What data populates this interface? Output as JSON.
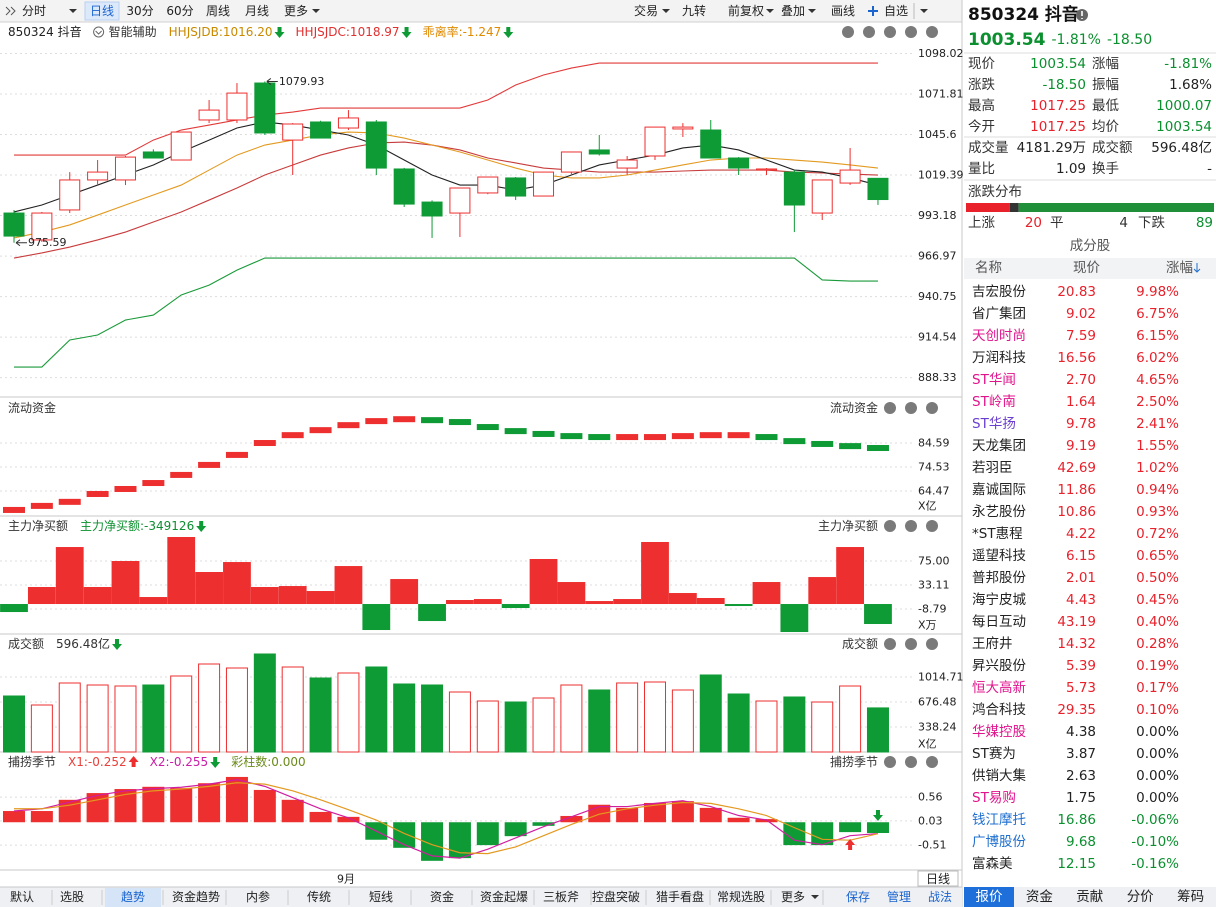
{
  "toolbar": {
    "left": [
      "分时",
      "日线",
      "30分",
      "60分",
      "周线",
      "月线",
      "更多"
    ],
    "active": 1,
    "right": [
      "交易",
      "九转",
      "前复权",
      "叠加",
      "画线",
      "自选"
    ]
  },
  "main": {
    "title": "850324 抖音",
    "assist": "智能辅助",
    "legend": [
      {
        "text": "HHJSJDB:1016.20",
        "color": "#c98a00",
        "arrow": "down"
      },
      {
        "text": "HHJSJDC:1018.97",
        "color": "#e03030",
        "arrow": "down"
      },
      {
        "text": "乖离率:-1.247",
        "color": "#e08a00",
        "arrow": "down"
      }
    ],
    "ylim": [
      877.1,
      1103.5
    ],
    "yticks": [
      1098.02,
      1071.81,
      1045.6,
      1019.39,
      993.18,
      966.97,
      940.75,
      914.54,
      888.33
    ],
    "open": [
      994.8,
      977.4,
      996.8,
      1016.2,
      1016.2,
      1034.3,
      1029.1,
      1055.0,
      1055.0,
      1078.9,
      1042.0,
      1053.7,
      1049.8,
      1053.7,
      1023.3,
      1001.9,
      994.8,
      1007.8,
      1017.5,
      1005.8,
      1021.3,
      1035.6,
      1023.9,
      1031.7,
      1049.2,
      1048.5,
      1030.4,
      1022.6,
      1021.3,
      994.8,
      1014.2,
      1017.25
    ],
    "high": [
      996.8,
      995.5,
      1021.3,
      1029.1,
      1031.7,
      1036.0,
      1047.2,
      1067.9,
      1078.9,
      1079.93,
      1053.0,
      1054.5,
      1061.4,
      1055.0,
      1024.0,
      1003.0,
      1011.0,
      1018.1,
      1018.1,
      1021.3,
      1034.3,
      1045.3,
      1031.7,
      1050.4,
      1053.0,
      1055.0,
      1031.0,
      1023.9,
      1022.6,
      1016.2,
      1036.9,
      1017.25
    ],
    "low": [
      975.59,
      976.1,
      994.8,
      1012.9,
      1012.9,
      1030.4,
      1029.1,
      1053.0,
      1053.0,
      1045.3,
      1019.4,
      1043.3,
      1048.5,
      1019.4,
      998.7,
      978.7,
      979.3,
      1007.0,
      1003.2,
      1005.8,
      1020.0,
      1032.0,
      1019.4,
      1029.1,
      1044.0,
      1030.4,
      1019.4,
      1019.4,
      982.5,
      990.3,
      1013.0,
      1000.07
    ],
    "close": [
      979.9,
      994.8,
      1016.2,
      1021.3,
      1031.0,
      1030.4,
      1047.2,
      1061.4,
      1072.4,
      1046.6,
      1052.4,
      1043.3,
      1056.3,
      1023.9,
      1000.6,
      992.9,
      1011.0,
      1018.1,
      1005.8,
      1021.3,
      1034.3,
      1033.0,
      1029.1,
      1050.4,
      1050.4,
      1030.4,
      1023.9,
      1023.3,
      1000.0,
      1016.2,
      1022.6,
      1003.54
    ],
    "lines": [
      {
        "color": "#e23a3a",
        "values": [
          1032.3,
          1032.3,
          1032.3,
          1032.3,
          1032.3,
          1042.0,
          1048.5,
          1051.7,
          1055.0,
          1058.2,
          1060.1,
          1062.7,
          1062.7,
          1062.7,
          1062.7,
          1062.7,
          1062.7,
          1067.9,
          1077.6,
          1084.1,
          1088.6,
          1091.8,
          1091.8,
          1091.8,
          1091.8,
          1091.8,
          1091.8,
          1091.8,
          1091.8,
          1091.8,
          1091.8,
          1091.8
        ]
      },
      {
        "color": "#1a9a3a",
        "values": [
          895.2,
          895.2,
          912.7,
          915.9,
          925.6,
          928.8,
          941.8,
          948.2,
          957.9,
          965.7,
          965.7,
          965.7,
          965.7,
          965.7,
          965.7,
          965.7,
          965.7,
          965.7,
          965.7,
          965.7,
          965.7,
          965.7,
          965.7,
          965.7,
          965.7,
          965.7,
          965.7,
          965.7,
          965.7,
          951.5,
          950.8,
          950.8
        ]
      },
      {
        "color": "#c83c3c",
        "values": [
          965.7,
          969.0,
          972.8,
          977.4,
          982.5,
          989.0,
          995.5,
          1003.2,
          1011.0,
          1019.4,
          1025.9,
          1032.3,
          1036.9,
          1040.1,
          1040.7,
          1038.8,
          1035.6,
          1030.4,
          1027.2,
          1023.9,
          1022.6,
          1021.3,
          1021.3,
          1021.3,
          1022.0,
          1022.6,
          1022.6,
          1022.6,
          1021.3,
          1020.7,
          1020.0,
          1019.4
        ]
      },
      {
        "color": "#e39a20",
        "values": [
          978.7,
          982.5,
          987.1,
          993.5,
          1000.0,
          1006.5,
          1012.9,
          1022.6,
          1032.3,
          1038.8,
          1042.0,
          1045.3,
          1047.2,
          1046.6,
          1043.3,
          1038.8,
          1034.3,
          1029.1,
          1023.9,
          1019.4,
          1017.5,
          1017.5,
          1019.4,
          1022.6,
          1025.9,
          1029.1,
          1030.4,
          1030.4,
          1029.1,
          1027.8,
          1025.9,
          1023.9
        ]
      },
      {
        "color": "#222222",
        "values": [
          995.5,
          1000.0,
          1006.5,
          1012.9,
          1019.4,
          1025.9,
          1034.3,
          1042.0,
          1049.8,
          1053.7,
          1051.7,
          1048.5,
          1045.3,
          1038.8,
          1029.1,
          1019.4,
          1012.9,
          1012.9,
          1009.7,
          1012.9,
          1019.4,
          1025.9,
          1029.1,
          1032.3,
          1036.9,
          1038.8,
          1035.6,
          1029.1,
          1022.6,
          1021.3,
          1017.5,
          1012.9
        ]
      }
    ]
  },
  "panels": [
    {
      "type": "dash",
      "title": "流动资金",
      "legend": [],
      "unit": "X亿",
      "ylim": [
        54.8,
        95.1
      ],
      "yticks": [
        84.59,
        74.53,
        64.47
      ],
      "values": [
        56.5,
        58.2,
        59.9,
        63.2,
        65.3,
        67.8,
        71.2,
        75.4,
        79.6,
        84.6,
        87.9,
        90.0,
        92.1,
        93.8,
        94.6,
        94.2,
        93.4,
        91.3,
        89.6,
        88.4,
        87.5,
        87.1,
        87.1,
        87.1,
        87.5,
        87.9,
        87.9,
        87.1,
        85.4,
        84.2,
        83.3,
        82.5
      ]
    },
    {
      "type": "net",
      "title": "主力净买额",
      "legend": [
        {
          "text": "主力净买额:-349126",
          "color": "#0b8f2f",
          "arrow": "down"
        }
      ],
      "unit": "X万",
      "ylim": [
        -50.6,
        120.5
      ],
      "yticks": [
        {
          "value": 75,
          "label": "75.00"
        },
        33.11,
        -8.79
      ],
      "values": [
        -14,
        29.7,
        99.5,
        29.7,
        75.1,
        12.2,
        117.0,
        55.9,
        73.3,
        29.7,
        31.4,
        22.7,
        66.3,
        -45.4,
        43.6,
        -29.7,
        7.0,
        8.7,
        -7.0,
        78.6,
        38.4,
        5.2,
        8.7,
        108.3,
        19.2,
        10.5,
        -3.5,
        38.4,
        -48.9,
        47.1,
        99.5,
        -34.9
      ]
    },
    {
      "type": "volume",
      "title": "成交额",
      "legend": [
        {
          "text": "596.48亿",
          "color": "#333333",
          "arrow": "down"
        }
      ],
      "unit": "X亿",
      "ylim": [
        0,
        1380
      ],
      "yticks": [
        1014.71,
        676.48,
        338.24
      ],
      "values": [
        757.7,
        635.9,
        933.6,
        906.5,
        893.0,
        906.5,
        1028.3,
        1190.6,
        1136.5,
        1325.9,
        1150.0,
        1001.2,
        1068.9,
        1150.0,
        920.0,
        906.5,
        811.8,
        690.0,
        676.5,
        730.6,
        906.5,
        838.9,
        933.6,
        947.1,
        838.9,
        1041.8,
        784.7,
        690.0,
        744.2,
        676.5,
        893.0,
        596.48
      ]
    },
    {
      "type": "season",
      "title": "捕捞季节",
      "legend": [
        {
          "text": "X1:-0.252",
          "color": "#e8403a",
          "arrow": "up"
        },
        {
          "text": "X2:-0.255",
          "color": "#c81ea8",
          "arrow": "down"
        },
        {
          "text": "彩柱数:0.000",
          "color": "#6a8a1a"
        }
      ],
      "ylim": [
        -1.02,
        1.12
      ],
      "yticks": [
        0.56,
        0.03,
        -0.51
      ],
      "values": [
        0.25,
        0.25,
        0.5,
        0.65,
        0.74,
        0.79,
        0.76,
        0.87,
        1.01,
        0.72,
        0.5,
        0.23,
        0.12,
        -0.39,
        -0.57,
        -0.86,
        -0.8,
        -0.51,
        -0.31,
        -0.08,
        0.14,
        0.39,
        0.32,
        0.43,
        0.47,
        0.32,
        0.1,
        0.07,
        -0.51,
        -0.51,
        -0.22,
        -0.24
      ],
      "lines": [
        {
          "color": "#d01ea0",
          "values": [
            0.25,
            0.3,
            0.45,
            0.6,
            0.7,
            0.75,
            0.78,
            0.85,
            0.95,
            0.8,
            0.55,
            0.3,
            0.1,
            -0.2,
            -0.5,
            -0.75,
            -0.8,
            -0.6,
            -0.35,
            -0.1,
            0.12,
            0.35,
            0.35,
            0.42,
            0.48,
            0.35,
            0.15,
            0.05,
            -0.4,
            -0.5,
            -0.3,
            -0.252
          ]
        },
        {
          "color": "#e39a20",
          "values": [
            0.3,
            0.3,
            0.38,
            0.5,
            0.62,
            0.7,
            0.74,
            0.8,
            0.88,
            0.85,
            0.7,
            0.5,
            0.28,
            0.05,
            -0.25,
            -0.5,
            -0.68,
            -0.7,
            -0.55,
            -0.3,
            -0.05,
            0.18,
            0.3,
            0.38,
            0.44,
            0.42,
            0.3,
            0.15,
            -0.12,
            -0.38,
            -0.4,
            -0.255
          ]
        }
      ]
    }
  ],
  "xaxis": {
    "label": "9月",
    "period": "日线"
  },
  "bottom_tabs": {
    "items": [
      "默认",
      "选股",
      "趋势",
      "资金趋势",
      "内参",
      "传统",
      "短线",
      "资金",
      "资金起爆",
      "三板斧",
      "控盘突破",
      "猎手看盘",
      "常规选股",
      "更多"
    ],
    "active": 2,
    "actions": [
      "保存",
      "管理",
      "战法"
    ]
  },
  "quote": {
    "name": "850324 抖音",
    "price": "1003.54",
    "pct": "-1.81%",
    "change": "-18.50",
    "color": "#0b8f2f",
    "stats": [
      [
        {
          "label": "现价",
          "value": "1003.54",
          "color": "#0b8f2f"
        },
        {
          "label": "涨幅",
          "value": "-1.81%",
          "color": "#0b8f2f"
        }
      ],
      [
        {
          "label": "涨跌",
          "value": "-18.50",
          "color": "#0b8f2f"
        },
        {
          "label": "振幅",
          "value": "1.68%",
          "color": "#222222"
        }
      ],
      [
        {
          "label": "最高",
          "value": "1017.25",
          "color": "#e8212b"
        },
        {
          "label": "最低",
          "value": "1000.07",
          "color": "#0b8f2f"
        }
      ],
      [
        {
          "label": "今开",
          "value": "1017.25",
          "color": "#e8212b"
        },
        {
          "label": "均价",
          "value": "1003.54",
          "color": "#0b8f2f"
        }
      ],
      [
        {
          "label": "成交量",
          "value": "4181.29万",
          "color": "#222222"
        },
        {
          "label": "成交额",
          "value": "596.48亿",
          "color": "#222222"
        }
      ],
      [
        {
          "label": "量比",
          "value": "1.09",
          "color": "#222222"
        },
        {
          "label": "换手",
          "value": "-",
          "color": "#222222"
        }
      ]
    ]
  },
  "distribution": {
    "title": "涨跌分布",
    "up_label": "上涨",
    "up": 20,
    "flat_label": "平",
    "flat": 4,
    "down_label": "下跌",
    "down": 89
  },
  "constituents": {
    "title": "成分股",
    "columns": [
      "名称",
      "现价",
      "涨幅"
    ],
    "rows": [
      {
        "name": "吉宏股份",
        "price": "20.83",
        "pct": "9.98%"
      },
      {
        "name": "省广集团",
        "price": "9.02",
        "pct": "6.75%"
      },
      {
        "name": "天创时尚",
        "price": "7.59",
        "pct": "6.15%",
        "color": "#e0138c"
      },
      {
        "name": "万润科技",
        "price": "16.56",
        "pct": "6.02%"
      },
      {
        "name": "ST华闻",
        "price": "2.70",
        "pct": "4.65%",
        "color": "#e0138c"
      },
      {
        "name": "ST岭南",
        "price": "1.64",
        "pct": "2.50%",
        "color": "#e0138c"
      },
      {
        "name": "ST华扬",
        "price": "9.78",
        "pct": "2.41%",
        "color": "#6a3fd0"
      },
      {
        "name": "天龙集团",
        "price": "9.19",
        "pct": "1.55%"
      },
      {
        "name": "若羽臣",
        "price": "42.69",
        "pct": "1.02%"
      },
      {
        "name": "嘉诚国际",
        "price": "11.86",
        "pct": "0.94%"
      },
      {
        "name": "永艺股份",
        "price": "10.86",
        "pct": "0.93%"
      },
      {
        "name": "*ST惠程",
        "price": "4.22",
        "pct": "0.72%"
      },
      {
        "name": "遥望科技",
        "price": "6.15",
        "pct": "0.65%"
      },
      {
        "name": "普邦股份",
        "price": "2.01",
        "pct": "0.50%"
      },
      {
        "name": "海宁皮城",
        "price": "4.43",
        "pct": "0.45%"
      },
      {
        "name": "每日互动",
        "price": "43.19",
        "pct": "0.40%"
      },
      {
        "name": "王府井",
        "price": "14.32",
        "pct": "0.28%"
      },
      {
        "name": "昇兴股份",
        "price": "5.39",
        "pct": "0.19%"
      },
      {
        "name": "恒大高新",
        "price": "5.73",
        "pct": "0.17%",
        "color": "#e0138c"
      },
      {
        "name": "鸿合科技",
        "price": "29.35",
        "pct": "0.10%"
      },
      {
        "name": "华媒控股",
        "price": "4.38",
        "pct": "0.00%",
        "color": "#e0138c"
      },
      {
        "name": "ST赛为",
        "price": "3.87",
        "pct": "0.00%"
      },
      {
        "name": "供销大集",
        "price": "2.63",
        "pct": "0.00%"
      },
      {
        "name": "ST易购",
        "price": "1.75",
        "pct": "0.00%",
        "color": "#e0138c"
      },
      {
        "name": "钱江摩托",
        "price": "16.86",
        "pct": "-0.06%",
        "color": "#1f6fd0"
      },
      {
        "name": "广博股份",
        "price": "9.68",
        "pct": "-0.10%",
        "color": "#1f6fd0"
      },
      {
        "name": "富森美",
        "price": "12.15",
        "pct": "-0.16%"
      }
    ]
  },
  "side_tabs": {
    "items": [
      "报价",
      "资金",
      "贡献",
      "分价",
      "筹码"
    ],
    "active": 0
  }
}
